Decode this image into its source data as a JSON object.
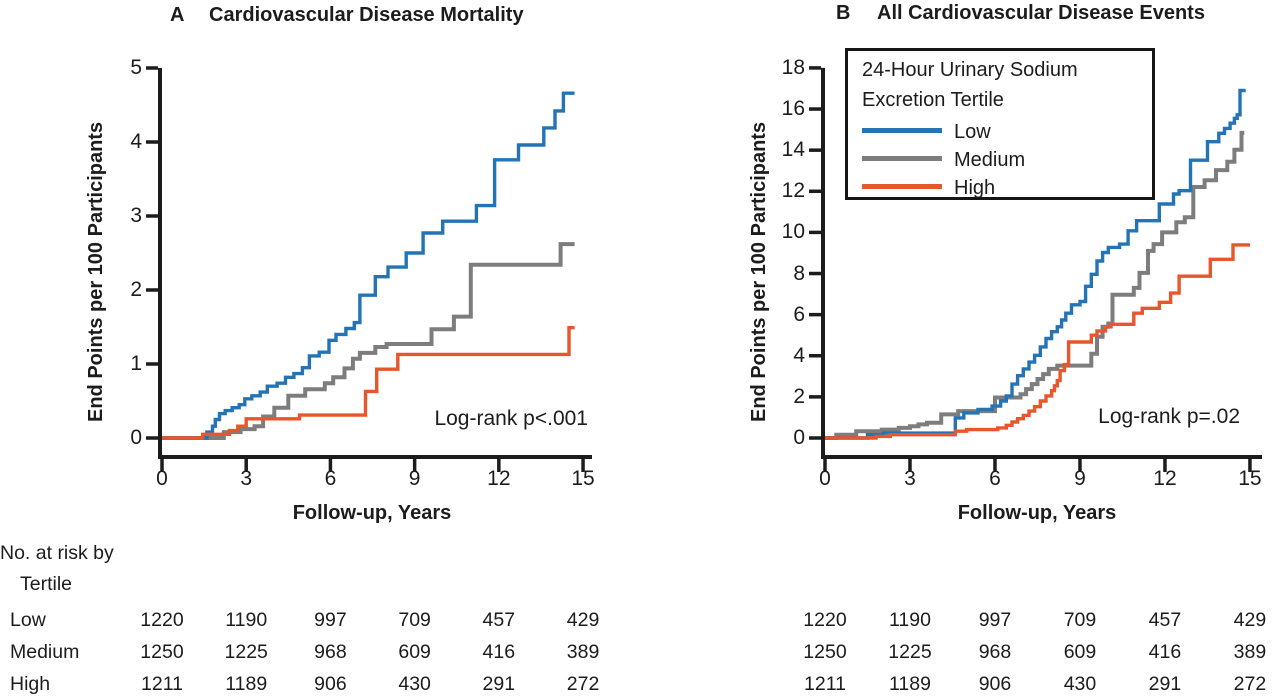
{
  "colors": {
    "axis": "#1c1c1c",
    "low": "#2474b5",
    "medium": "#7d7d7d",
    "high": "#e8562c"
  },
  "risk_table": {
    "header_line1": "No. at risk by",
    "header_line2": "Tertile",
    "years": [
      0,
      3,
      6,
      9,
      12,
      15
    ],
    "rows": [
      {
        "label": "Low",
        "values": [
          1220,
          1190,
          997,
          709,
          457,
          429
        ]
      },
      {
        "label": "Medium",
        "values": [
          1250,
          1225,
          968,
          609,
          416,
          389
        ]
      },
      {
        "label": "High",
        "values": [
          1211,
          1189,
          906,
          430,
          291,
          272
        ]
      }
    ]
  },
  "chart_data": [
    {
      "type": "line",
      "variant": "step",
      "panel_label": "A",
      "title": "Cardiovascular Disease Mortality",
      "xlabel": "Follow-up, Years",
      "ylabel": "End Points per 100 Participants",
      "annotation": "Log-rank p<.001",
      "xlim": [
        0,
        15
      ],
      "ylim": [
        0,
        5
      ],
      "xticks": [
        0,
        3,
        6,
        9,
        12,
        15
      ],
      "yticks": [
        0,
        1,
        2,
        3,
        4,
        5
      ],
      "grid": false,
      "series": [
        {
          "name": "Low",
          "color": "#2474b5",
          "points": [
            [
              0,
              0
            ],
            [
              1.6,
              0.08
            ],
            [
              1.8,
              0.16
            ],
            [
              1.9,
              0.25
            ],
            [
              2.05,
              0.33
            ],
            [
              2.25,
              0.37
            ],
            [
              2.5,
              0.41
            ],
            [
              2.75,
              0.45
            ],
            [
              2.95,
              0.53
            ],
            [
              3.2,
              0.57
            ],
            [
              3.5,
              0.62
            ],
            [
              3.75,
              0.7
            ],
            [
              4.1,
              0.74
            ],
            [
              4.4,
              0.82
            ],
            [
              4.7,
              0.87
            ],
            [
              5.0,
              0.95
            ],
            [
              5.25,
              1.11
            ],
            [
              5.6,
              1.16
            ],
            [
              5.95,
              1.32
            ],
            [
              6.2,
              1.4
            ],
            [
              6.55,
              1.48
            ],
            [
              6.85,
              1.56
            ],
            [
              7.05,
              1.93
            ],
            [
              7.6,
              2.18
            ],
            [
              8.05,
              2.31
            ],
            [
              8.7,
              2.5
            ],
            [
              9.3,
              2.77
            ],
            [
              10.0,
              2.93
            ],
            [
              11.2,
              3.14
            ],
            [
              11.85,
              3.76
            ],
            [
              12.7,
              3.96
            ],
            [
              13.6,
              4.19
            ],
            [
              14.0,
              4.42
            ],
            [
              14.3,
              4.66
            ],
            [
              14.7,
              4.66
            ]
          ]
        },
        {
          "name": "Medium",
          "color": "#7d7d7d",
          "points": [
            [
              0,
              0
            ],
            [
              2.2,
              0.08
            ],
            [
              2.8,
              0.12
            ],
            [
              3.3,
              0.16
            ],
            [
              3.6,
              0.29
            ],
            [
              4.0,
              0.41
            ],
            [
              4.5,
              0.57
            ],
            [
              5.1,
              0.66
            ],
            [
              5.8,
              0.74
            ],
            [
              6.1,
              0.82
            ],
            [
              6.5,
              0.94
            ],
            [
              6.8,
              1.07
            ],
            [
              7.05,
              1.15
            ],
            [
              7.6,
              1.23
            ],
            [
              8.0,
              1.27
            ],
            [
              9.6,
              1.47
            ],
            [
              10.4,
              1.64
            ],
            [
              11.0,
              2.34
            ],
            [
              14.2,
              2.62
            ],
            [
              14.7,
              2.62
            ]
          ]
        },
        {
          "name": "High",
          "color": "#e8562c",
          "points": [
            [
              0,
              0
            ],
            [
              1.45,
              0.05
            ],
            [
              2.4,
              0.1
            ],
            [
              2.7,
              0.16
            ],
            [
              3.0,
              0.26
            ],
            [
              4.9,
              0.31
            ],
            [
              7.25,
              0.63
            ],
            [
              7.65,
              0.93
            ],
            [
              8.4,
              1.13
            ],
            [
              14.5,
              1.49
            ],
            [
              14.7,
              1.49
            ]
          ]
        }
      ]
    },
    {
      "type": "line",
      "variant": "step",
      "panel_label": "B",
      "title": "All Cardiovascular Disease Events",
      "xlabel": "Follow-up, Years",
      "ylabel": "End Points per 100 Participants",
      "annotation": "Log-rank p=.02",
      "xlim": [
        0,
        15
      ],
      "ylim": [
        0,
        18
      ],
      "xticks": [
        0,
        3,
        6,
        9,
        12,
        15
      ],
      "yticks": [
        0,
        2,
        4,
        6,
        8,
        10,
        12,
        14,
        16,
        18
      ],
      "grid": false,
      "legend": {
        "title_line1": "24-Hour Urinary Sodium",
        "title_line2": "Excretion Tertile",
        "entries": [
          {
            "label": "Low",
            "color": "#2474b5"
          },
          {
            "label": "Medium",
            "color": "#7d7d7d"
          },
          {
            "label": "High",
            "color": "#e8562c"
          }
        ]
      },
      "series": [
        {
          "name": "Low",
          "color": "#2474b5",
          "points": [
            [
              0,
              0
            ],
            [
              1.5,
              0.16
            ],
            [
              2.05,
              0.24
            ],
            [
              4.6,
              0.98
            ],
            [
              4.9,
              1.22
            ],
            [
              5.4,
              1.39
            ],
            [
              5.9,
              1.55
            ],
            [
              6.2,
              1.8
            ],
            [
              6.4,
              2.05
            ],
            [
              6.6,
              2.62
            ],
            [
              6.8,
              3.03
            ],
            [
              7.0,
              3.36
            ],
            [
              7.2,
              3.69
            ],
            [
              7.4,
              4.02
            ],
            [
              7.6,
              4.43
            ],
            [
              7.8,
              4.84
            ],
            [
              8.0,
              5.17
            ],
            [
              8.2,
              5.41
            ],
            [
              8.35,
              5.74
            ],
            [
              8.5,
              6.07
            ],
            [
              8.7,
              6.48
            ],
            [
              9.0,
              6.64
            ],
            [
              9.2,
              7.38
            ],
            [
              9.4,
              7.96
            ],
            [
              9.6,
              8.61
            ],
            [
              9.8,
              9.02
            ],
            [
              10.0,
              9.27
            ],
            [
              10.4,
              9.43
            ],
            [
              10.7,
              10.08
            ],
            [
              11.0,
              10.57
            ],
            [
              11.8,
              11.38
            ],
            [
              12.3,
              11.87
            ],
            [
              12.5,
              12.03
            ],
            [
              12.9,
              13.51
            ],
            [
              13.5,
              14.41
            ],
            [
              13.9,
              14.82
            ],
            [
              14.1,
              15.06
            ],
            [
              14.3,
              15.31
            ],
            [
              14.45,
              15.55
            ],
            [
              14.55,
              15.72
            ],
            [
              14.65,
              16.9
            ],
            [
              14.85,
              16.9
            ]
          ]
        },
        {
          "name": "Medium",
          "color": "#7d7d7d",
          "points": [
            [
              0,
              0
            ],
            [
              0.4,
              0.16
            ],
            [
              1.1,
              0.33
            ],
            [
              2.0,
              0.41
            ],
            [
              2.6,
              0.49
            ],
            [
              3.0,
              0.57
            ],
            [
              3.3,
              0.66
            ],
            [
              3.6,
              0.74
            ],
            [
              4.1,
              1.15
            ],
            [
              4.7,
              1.31
            ],
            [
              6.0,
              1.97
            ],
            [
              6.9,
              2.13
            ],
            [
              7.1,
              2.38
            ],
            [
              7.3,
              2.62
            ],
            [
              7.5,
              2.87
            ],
            [
              7.7,
              3.11
            ],
            [
              7.9,
              3.36
            ],
            [
              8.2,
              3.52
            ],
            [
              9.4,
              4.1
            ],
            [
              9.6,
              4.92
            ],
            [
              9.8,
              5.41
            ],
            [
              10.0,
              5.57
            ],
            [
              10.15,
              6.97
            ],
            [
              10.9,
              7.3
            ],
            [
              11.1,
              8.03
            ],
            [
              11.4,
              9.1
            ],
            [
              11.6,
              9.43
            ],
            [
              11.9,
              10.0
            ],
            [
              12.4,
              10.49
            ],
            [
              12.7,
              10.74
            ],
            [
              13.0,
              12.21
            ],
            [
              13.4,
              12.54
            ],
            [
              13.8,
              13.03
            ],
            [
              14.2,
              13.44
            ],
            [
              14.45,
              14.02
            ],
            [
              14.7,
              14.84
            ],
            [
              14.8,
              14.84
            ]
          ]
        },
        {
          "name": "High",
          "color": "#e8562c",
          "points": [
            [
              0,
              0
            ],
            [
              1.8,
              0.08
            ],
            [
              2.3,
              0.16
            ],
            [
              4.6,
              0.33
            ],
            [
              5.0,
              0.41
            ],
            [
              6.1,
              0.49
            ],
            [
              6.4,
              0.62
            ],
            [
              6.6,
              0.78
            ],
            [
              6.8,
              0.94
            ],
            [
              7.0,
              1.1
            ],
            [
              7.2,
              1.31
            ],
            [
              7.4,
              1.52
            ],
            [
              7.6,
              1.8
            ],
            [
              7.8,
              2.05
            ],
            [
              8.0,
              2.3
            ],
            [
              8.1,
              2.54
            ],
            [
              8.2,
              2.79
            ],
            [
              8.3,
              3.28
            ],
            [
              8.45,
              3.57
            ],
            [
              8.6,
              4.67
            ],
            [
              9.4,
              5.0
            ],
            [
              9.6,
              5.21
            ],
            [
              9.9,
              5.41
            ],
            [
              10.1,
              5.53
            ],
            [
              10.9,
              6.07
            ],
            [
              11.2,
              6.31
            ],
            [
              11.8,
              6.6
            ],
            [
              12.2,
              7.05
            ],
            [
              12.5,
              7.87
            ],
            [
              13.6,
              8.69
            ],
            [
              14.4,
              9.39
            ],
            [
              15.0,
              9.39
            ]
          ]
        }
      ]
    }
  ]
}
